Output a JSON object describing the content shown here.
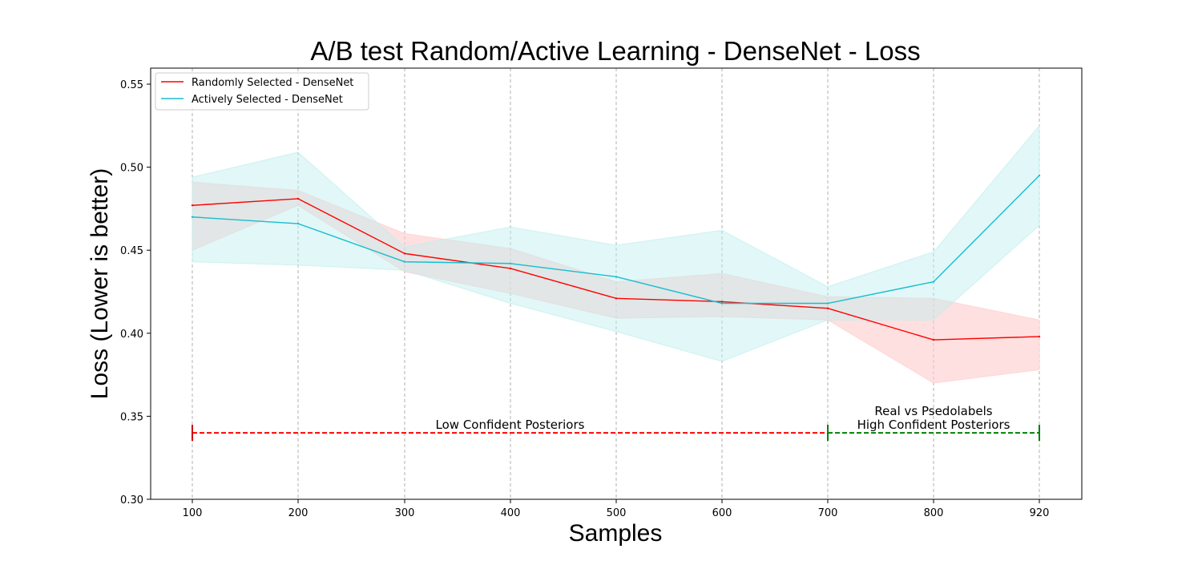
{
  "chart_data": {
    "type": "line",
    "title": "A/B test Random/Active Learning - DenseNet - Loss",
    "xlabel": "Samples",
    "ylabel": "Loss (Lower is better)",
    "x": [
      100,
      200,
      300,
      400,
      500,
      600,
      700,
      800,
      920
    ],
    "x_tick_labels": [
      "100",
      "200",
      "300",
      "400",
      "500",
      "600",
      "700",
      "800",
      "920"
    ],
    "ylim": [
      0.3,
      0.56
    ],
    "y_ticks": [
      0.3,
      0.35,
      0.4,
      0.45,
      0.5,
      0.55
    ],
    "y_tick_labels": [
      "0.30",
      "0.35",
      "0.40",
      "0.45",
      "0.50",
      "0.55"
    ],
    "grid": "vertical-dashed",
    "legend_position": "top-left",
    "series": [
      {
        "name": "Randomly Selected - DenseNet",
        "color": "#ff0000",
        "band_color": "#ffcccc",
        "values": [
          0.477,
          0.481,
          0.448,
          0.439,
          0.421,
          0.419,
          0.415,
          0.396,
          0.398
        ],
        "lower": [
          0.45,
          0.477,
          0.437,
          0.424,
          0.409,
          0.41,
          0.408,
          0.37,
          0.378
        ],
        "upper": [
          0.491,
          0.486,
          0.46,
          0.451,
          0.431,
          0.436,
          0.422,
          0.421,
          0.408
        ]
      },
      {
        "name": "Actively Selected - DenseNet",
        "color": "#17becf",
        "band_color": "#bfeeee",
        "values": [
          0.47,
          0.466,
          0.443,
          0.442,
          0.434,
          0.418,
          0.418,
          0.431,
          0.495
        ],
        "lower": [
          0.443,
          0.441,
          0.438,
          0.418,
          0.401,
          0.383,
          0.408,
          0.408,
          0.465
        ],
        "upper": [
          0.494,
          0.509,
          0.452,
          0.464,
          0.453,
          0.462,
          0.428,
          0.449,
          0.525
        ]
      }
    ],
    "annotations": [
      {
        "text_lines": [
          "Low Confident Posteriors"
        ],
        "x_start": 100,
        "x_end": 700,
        "y": 0.34,
        "color": "#ff0000",
        "cap_color": "#cc0000"
      },
      {
        "text_lines": [
          "Real vs Psedolabels",
          "High Confident Posteriors"
        ],
        "x_start": 700,
        "x_end": 920,
        "y": 0.34,
        "color": "#008000",
        "cap_color": "#008000"
      }
    ]
  }
}
